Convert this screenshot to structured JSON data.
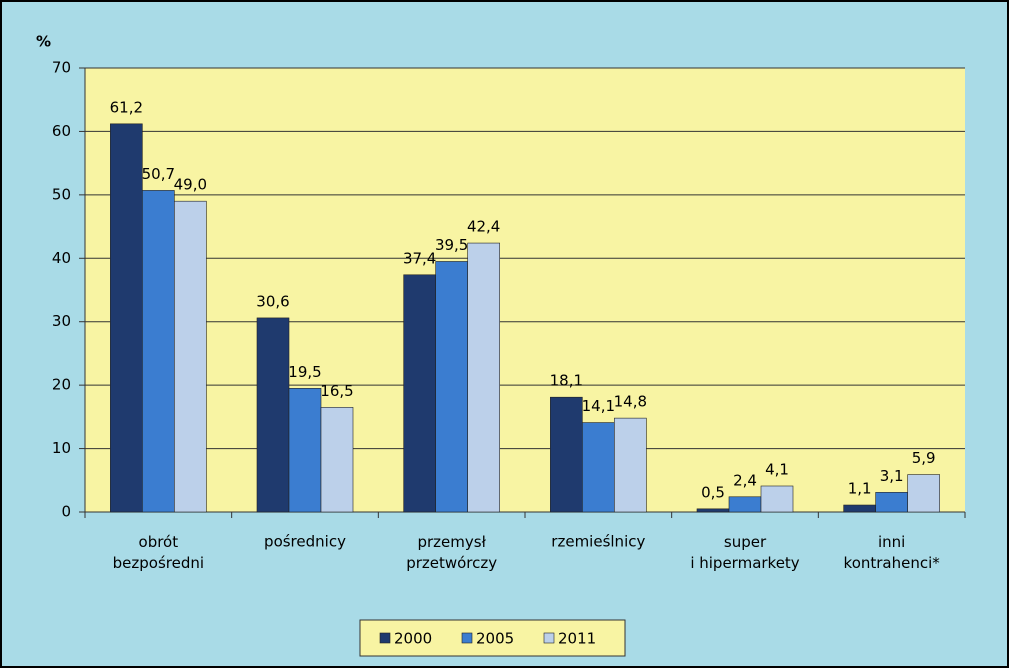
{
  "chart_data": {
    "type": "bar",
    "y_label": "%",
    "categories": [
      "obrót\nbezpośredni",
      "pośrednicy",
      "przemysł\nprzetwórczy",
      "rzemieślnicy",
      "super\ni hipermarkety",
      "inni\nkontrahenci*"
    ],
    "series": [
      {
        "name": "2000",
        "color": "#1f3a6e",
        "values": [
          61.2,
          30.6,
          37.4,
          18.1,
          0.5,
          1.1
        ],
        "value_labels": [
          "61,2",
          "30,6",
          "37,4",
          "18,1",
          "0,5",
          "1,1"
        ]
      },
      {
        "name": "2005",
        "color": "#3b7dd0",
        "values": [
          50.7,
          19.5,
          39.5,
          14.1,
          2.4,
          3.1
        ],
        "value_labels": [
          "50,7",
          "19,5",
          "39,5",
          "14,1",
          "2,4",
          "3,1"
        ]
      },
      {
        "name": "2011",
        "color": "#bcd0ea",
        "values": [
          49.0,
          16.5,
          42.4,
          14.8,
          4.1,
          5.9
        ],
        "value_labels": [
          "49,0",
          "16,5",
          "42,4",
          "14,8",
          "4,1",
          "5,9"
        ]
      }
    ],
    "ylim": [
      0,
      70
    ],
    "yticks": [
      0,
      10,
      20,
      30,
      40,
      50,
      60,
      70
    ],
    "grid": true,
    "legend": "bottom"
  }
}
